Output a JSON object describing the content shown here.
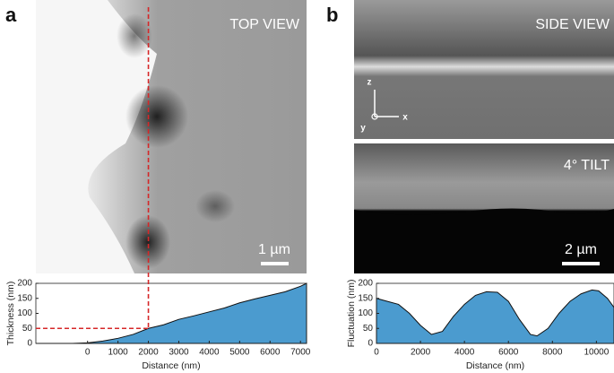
{
  "panels": [
    {
      "label": "a",
      "image_labels": [
        "TOP VIEW",
        "1 µm"
      ]
    },
    {
      "label": "b",
      "image_labels": [
        "SIDE VIEW",
        "4° TILT",
        "2 µm"
      ],
      "axes_glyph": [
        "z",
        "x",
        "y"
      ]
    }
  ],
  "chart_data": [
    {
      "type": "area",
      "xlabel": "Distance (nm)",
      "ylabel": "Thickness (nm)",
      "color": "#4b9bcf",
      "x": [
        -1700,
        -500,
        0,
        500,
        1000,
        1500,
        2000,
        2500,
        3000,
        3500,
        4000,
        4500,
        5000,
        5500,
        6000,
        6500,
        7000,
        7200
      ],
      "values": [
        0,
        0,
        2,
        8,
        17,
        30,
        50,
        62,
        80,
        92,
        105,
        118,
        135,
        148,
        160,
        172,
        190,
        200
      ],
      "xlim": [
        -1700,
        7200
      ],
      "xticks": [
        0,
        1000,
        2000,
        3000,
        4000,
        5000,
        6000,
        7000
      ],
      "ylim": [
        0,
        200
      ],
      "yticks": [
        0,
        50,
        100,
        150,
        200
      ],
      "marker": {
        "x": 2000,
        "y": 50,
        "color": "#d62728"
      }
    },
    {
      "type": "area",
      "xlabel": "Distance (nm)",
      "ylabel": "Fluctuation (nm)",
      "color": "#4b9bcf",
      "x": [
        0,
        500,
        1000,
        1500,
        2000,
        2500,
        3000,
        3500,
        4000,
        4500,
        5000,
        5500,
        6000,
        6500,
        7000,
        7300,
        7800,
        8300,
        8800,
        9300,
        9800,
        10100,
        10500,
        10800
      ],
      "values": [
        150,
        140,
        130,
        100,
        60,
        30,
        40,
        90,
        130,
        160,
        172,
        170,
        140,
        80,
        30,
        25,
        50,
        100,
        140,
        165,
        178,
        175,
        150,
        120
      ],
      "xlim": [
        0,
        10800
      ],
      "xticks": [
        0,
        2000,
        4000,
        6000,
        8000,
        10000
      ],
      "ylim": [
        0,
        200
      ],
      "yticks": [
        0,
        50,
        100,
        150,
        200
      ]
    }
  ]
}
